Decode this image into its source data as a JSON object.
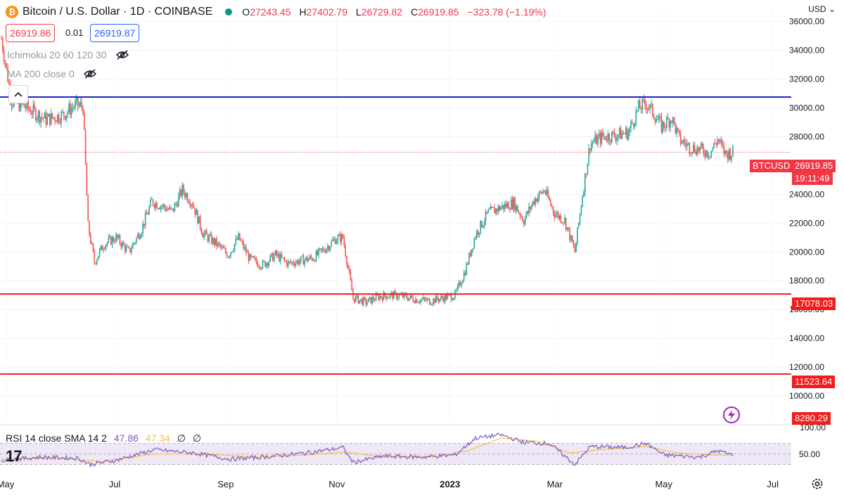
{
  "header": {
    "logo_glyph": "₿",
    "symbol": "Bitcoin / U.S. Dollar · 1D · COINBASE",
    "open_label": "O",
    "open": "27243.45",
    "high_label": "H",
    "high": "27402.79",
    "low_label": "L",
    "low": "26729.82",
    "close_label": "C",
    "close": "26919.85",
    "change": "−323.78 (−1.19%)",
    "bid": "26919.86",
    "spread": "0.01",
    "ask": "26919.87",
    "market_status_color": "#089981"
  },
  "indicators": [
    {
      "label": "Ichimoku 20 60 120 30",
      "icon": "eye-off-icon"
    },
    {
      "label": "MA 200 close 0",
      "icon": "eye-off-icon"
    }
  ],
  "currency": "USD",
  "price_labels": {
    "current_symbol": "BTCUSD",
    "current_price": "26919.85",
    "countdown": "19:11:49",
    "level_1": "17078.03",
    "level_2": "11523.64",
    "low_marker": "8280.29"
  },
  "rsi": {
    "label": "RSI 14 close SMA 14 2",
    "value": "47.86",
    "sma": "47.34",
    "extra1": "∅",
    "extra2": "∅",
    "axis_top": "100.00",
    "axis_mid": "50.00"
  },
  "tv_logo": "17",
  "chart_data": {
    "type": "candlestick",
    "y_ticks": [
      "36000.00",
      "34000.00",
      "32000.00",
      "30000.00",
      "28000.00",
      "26000.00",
      "24000.00",
      "22000.00",
      "20000.00",
      "18000.00",
      "16000.00",
      "14000.00",
      "12000.00",
      "10000.00"
    ],
    "x_ticks": [
      "May",
      "Jul",
      "Sep",
      "Nov",
      "2023",
      "Mar",
      "May",
      "Jul"
    ],
    "ylim": [
      8200,
      37000
    ],
    "horizontal_lines": [
      {
        "value": 30750,
        "color": "#1a23c9"
      },
      {
        "value": 17078.03,
        "color": "#f21d1d"
      },
      {
        "value": 11523.64,
        "color": "#f21d1d"
      }
    ],
    "colors": {
      "up": "#26a69a",
      "down": "#ef5350"
    },
    "path_points": [
      {
        "x": 0,
        "y": 34800
      },
      {
        "x": 8,
        "y": 30500
      },
      {
        "x": 20,
        "y": 30000
      },
      {
        "x": 35,
        "y": 29200
      },
      {
        "x": 48,
        "y": 29500
      },
      {
        "x": 58,
        "y": 30200
      },
      {
        "x": 64,
        "y": 30100
      },
      {
        "x": 68,
        "y": 21800
      },
      {
        "x": 73,
        "y": 19300
      },
      {
        "x": 80,
        "y": 20500
      },
      {
        "x": 90,
        "y": 21000
      },
      {
        "x": 100,
        "y": 20000
      },
      {
        "x": 110,
        "y": 21600
      },
      {
        "x": 118,
        "y": 23500
      },
      {
        "x": 126,
        "y": 23200
      },
      {
        "x": 134,
        "y": 22800
      },
      {
        "x": 142,
        "y": 24300
      },
      {
        "x": 150,
        "y": 23400
      },
      {
        "x": 158,
        "y": 21300
      },
      {
        "x": 168,
        "y": 20600
      },
      {
        "x": 178,
        "y": 19800
      },
      {
        "x": 186,
        "y": 21000
      },
      {
        "x": 195,
        "y": 19500
      },
      {
        "x": 205,
        "y": 19100
      },
      {
        "x": 215,
        "y": 19800
      },
      {
        "x": 225,
        "y": 19200
      },
      {
        "x": 235,
        "y": 19400
      },
      {
        "x": 245,
        "y": 19600
      },
      {
        "x": 255,
        "y": 20300
      },
      {
        "x": 262,
        "y": 20900
      },
      {
        "x": 268,
        "y": 21000
      },
      {
        "x": 276,
        "y": 16800
      },
      {
        "x": 286,
        "y": 16500
      },
      {
        "x": 296,
        "y": 16900
      },
      {
        "x": 306,
        "y": 17000
      },
      {
        "x": 316,
        "y": 16900
      },
      {
        "x": 326,
        "y": 16700
      },
      {
        "x": 336,
        "y": 16600
      },
      {
        "x": 346,
        "y": 16800
      },
      {
        "x": 356,
        "y": 17000
      },
      {
        "x": 364,
        "y": 18700
      },
      {
        "x": 372,
        "y": 21200
      },
      {
        "x": 382,
        "y": 22700
      },
      {
        "x": 392,
        "y": 23100
      },
      {
        "x": 402,
        "y": 23400
      },
      {
        "x": 410,
        "y": 22200
      },
      {
        "x": 418,
        "y": 23600
      },
      {
        "x": 426,
        "y": 24300
      },
      {
        "x": 434,
        "y": 22700
      },
      {
        "x": 442,
        "y": 22200
      },
      {
        "x": 450,
        "y": 20000
      },
      {
        "x": 456,
        "y": 24000
      },
      {
        "x": 462,
        "y": 27500
      },
      {
        "x": 472,
        "y": 28000
      },
      {
        "x": 482,
        "y": 28100
      },
      {
        "x": 492,
        "y": 28300
      },
      {
        "x": 500,
        "y": 30000
      },
      {
        "x": 506,
        "y": 30300
      },
      {
        "x": 512,
        "y": 29600
      },
      {
        "x": 518,
        "y": 28700
      },
      {
        "x": 526,
        "y": 29300
      },
      {
        "x": 532,
        "y": 27800
      },
      {
        "x": 540,
        "y": 27300
      },
      {
        "x": 548,
        "y": 27100
      },
      {
        "x": 556,
        "y": 26900
      },
      {
        "x": 562,
        "y": 27800
      },
      {
        "x": 568,
        "y": 26800
      },
      {
        "x": 574,
        "y": 26920
      }
    ],
    "rsi_ylim": [
      20,
      100
    ],
    "rsi_band": [
      30,
      70
    ],
    "rsi_points": [
      {
        "x": 0,
        "y": 38
      },
      {
        "x": 30,
        "y": 44
      },
      {
        "x": 60,
        "y": 42
      },
      {
        "x": 70,
        "y": 30
      },
      {
        "x": 90,
        "y": 38
      },
      {
        "x": 120,
        "y": 58
      },
      {
        "x": 150,
        "y": 52
      },
      {
        "x": 180,
        "y": 40
      },
      {
        "x": 210,
        "y": 45
      },
      {
        "x": 240,
        "y": 52
      },
      {
        "x": 268,
        "y": 62
      },
      {
        "x": 276,
        "y": 34
      },
      {
        "x": 300,
        "y": 46
      },
      {
        "x": 330,
        "y": 44
      },
      {
        "x": 356,
        "y": 48
      },
      {
        "x": 372,
        "y": 80
      },
      {
        "x": 392,
        "y": 86
      },
      {
        "x": 410,
        "y": 72
      },
      {
        "x": 430,
        "y": 70
      },
      {
        "x": 450,
        "y": 30
      },
      {
        "x": 462,
        "y": 64
      },
      {
        "x": 490,
        "y": 62
      },
      {
        "x": 506,
        "y": 70
      },
      {
        "x": 520,
        "y": 48
      },
      {
        "x": 548,
        "y": 44
      },
      {
        "x": 562,
        "y": 56
      },
      {
        "x": 574,
        "y": 47.9
      }
    ],
    "rsi_sma_points": [
      {
        "x": 0,
        "y": 40
      },
      {
        "x": 40,
        "y": 42
      },
      {
        "x": 80,
        "y": 36
      },
      {
        "x": 120,
        "y": 50
      },
      {
        "x": 160,
        "y": 50
      },
      {
        "x": 200,
        "y": 44
      },
      {
        "x": 240,
        "y": 48
      },
      {
        "x": 270,
        "y": 54
      },
      {
        "x": 300,
        "y": 44
      },
      {
        "x": 340,
        "y": 45
      },
      {
        "x": 366,
        "y": 56
      },
      {
        "x": 392,
        "y": 80
      },
      {
        "x": 420,
        "y": 74
      },
      {
        "x": 446,
        "y": 52
      },
      {
        "x": 470,
        "y": 58
      },
      {
        "x": 506,
        "y": 64
      },
      {
        "x": 530,
        "y": 52
      },
      {
        "x": 560,
        "y": 48
      },
      {
        "x": 574,
        "y": 47.3
      }
    ]
  }
}
